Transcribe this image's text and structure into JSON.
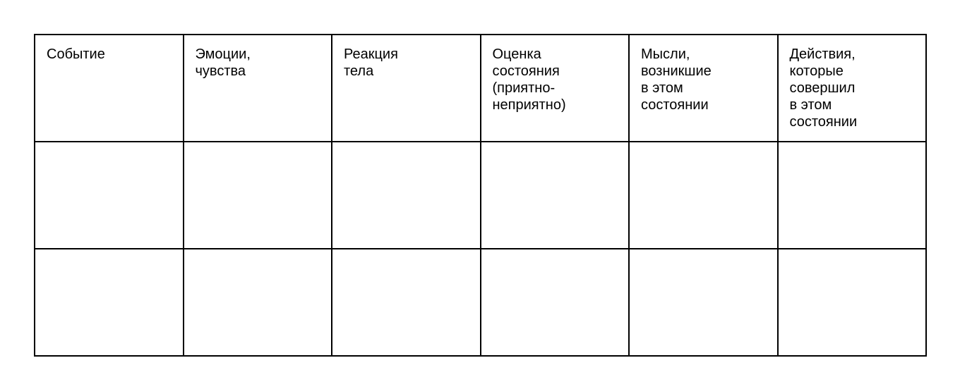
{
  "table": {
    "headers": [
      "Событие",
      "Эмоции,\nчувства",
      "Реакция\nтела",
      "Оценка\nсостояния\n(приятно-\nнеприятно)",
      "Мысли,\nвозникшие\nв этом\nсостоянии",
      "Действия,\nкоторые\nсовершил\nв этом\nсостоянии"
    ],
    "rows": [
      [
        "",
        "",
        "",
        "",
        "",
        ""
      ],
      [
        "",
        "",
        "",
        "",
        "",
        ""
      ]
    ]
  }
}
